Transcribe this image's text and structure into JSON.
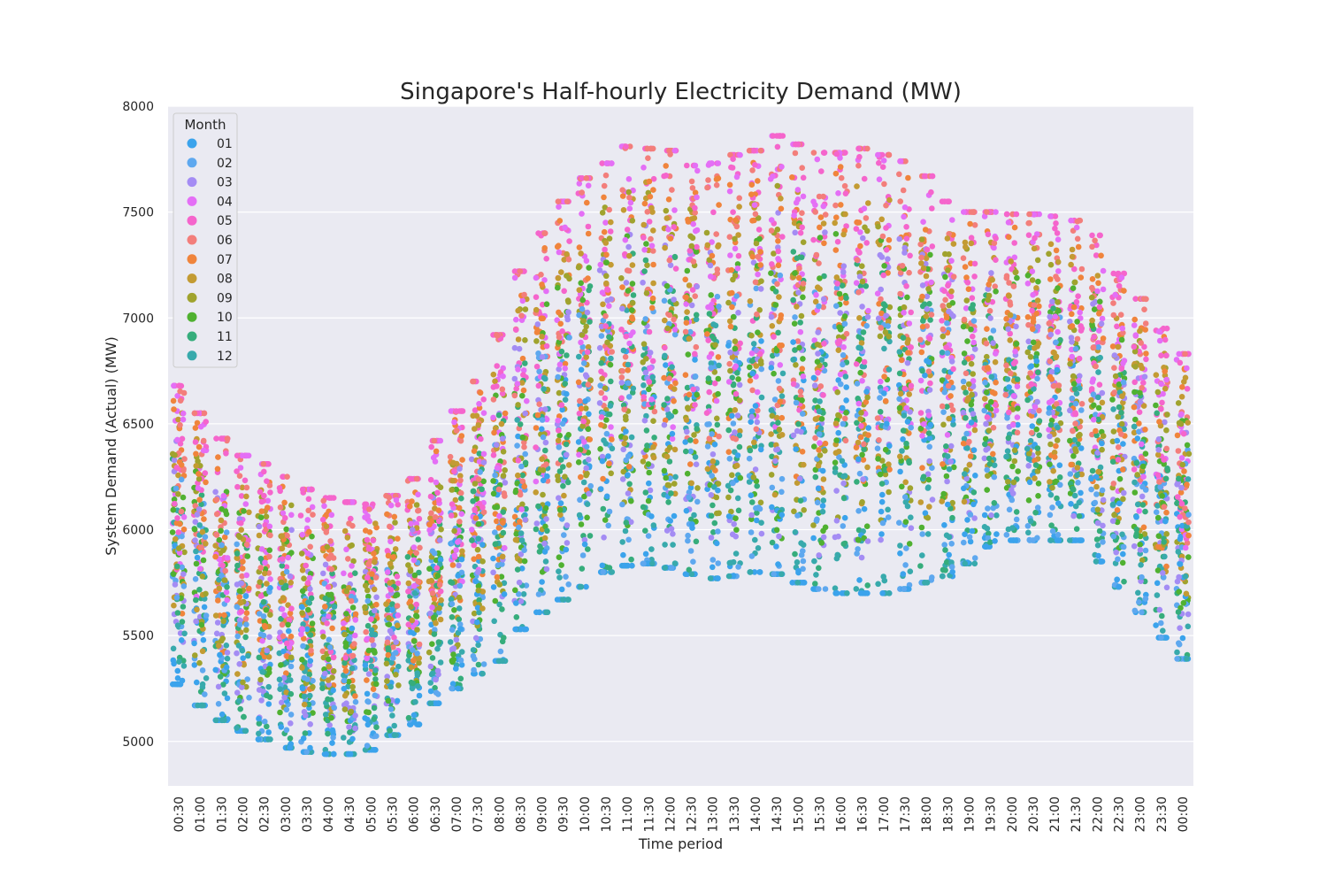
{
  "chart_data": {
    "type": "scatter",
    "title": "Singapore's Half-hourly Electricity Demand (MW)",
    "xlabel": "Time period",
    "ylabel": "System Demand (Actual) (MW)",
    "ylim": [
      4790,
      8000
    ],
    "yticks": [
      5000,
      5500,
      6000,
      6500,
      7000,
      7500,
      8000
    ],
    "grid": true,
    "categories": [
      "00:30",
      "01:00",
      "01:30",
      "02:00",
      "02:30",
      "03:00",
      "03:30",
      "04:00",
      "04:30",
      "05:00",
      "05:30",
      "06:00",
      "06:30",
      "07:00",
      "07:30",
      "08:00",
      "08:30",
      "09:00",
      "09:30",
      "10:00",
      "10:30",
      "11:00",
      "11:30",
      "12:00",
      "12:30",
      "13:00",
      "13:30",
      "14:00",
      "14:30",
      "15:00",
      "15:30",
      "16:00",
      "16:30",
      "17:00",
      "17:30",
      "18:00",
      "18:30",
      "19:00",
      "19:30",
      "20:00",
      "20:30",
      "21:00",
      "21:30",
      "22:00",
      "22:30",
      "23:00",
      "23:30",
      "00:00"
    ],
    "demand_min": [
      5270,
      5170,
      5100,
      5050,
      5010,
      4970,
      4950,
      4940,
      4940,
      4960,
      5030,
      5080,
      5180,
      5250,
      5320,
      5380,
      5530,
      5610,
      5670,
      5730,
      5800,
      5830,
      5840,
      5820,
      5790,
      5770,
      5780,
      5800,
      5790,
      5750,
      5720,
      5700,
      5700,
      5700,
      5720,
      5750,
      5780,
      5840,
      5920,
      5950,
      5950,
      5950,
      5950,
      5850,
      5730,
      5610,
      5490,
      5390
    ],
    "demand_max": [
      6680,
      6550,
      6430,
      6350,
      6310,
      6250,
      6190,
      6150,
      6130,
      6120,
      6160,
      6240,
      6420,
      6560,
      6700,
      6920,
      7220,
      7400,
      7550,
      7660,
      7730,
      7810,
      7800,
      7790,
      7720,
      7730,
      7770,
      7790,
      7860,
      7820,
      7780,
      7780,
      7800,
      7770,
      7740,
      7670,
      7550,
      7500,
      7500,
      7490,
      7490,
      7480,
      7460,
      7390,
      7210,
      7090,
      6950,
      6830
    ],
    "legend": {
      "title": "Month",
      "placement": "upper-left",
      "items": [
        {
          "label": "01",
          "color": "#3ba3ec"
        },
        {
          "label": "02",
          "color": "#5ea8ef"
        },
        {
          "label": "03",
          "color": "#a48cf4"
        },
        {
          "label": "04",
          "color": "#e46ff6"
        },
        {
          "label": "05",
          "color": "#f565cc"
        },
        {
          "label": "06",
          "color": "#f37e7b"
        },
        {
          "label": "07",
          "color": "#f0843c"
        },
        {
          "label": "08",
          "color": "#c39b33"
        },
        {
          "label": "09",
          "color": "#a0a32e"
        },
        {
          "label": "10",
          "color": "#50b131"
        },
        {
          "label": "11",
          "color": "#36ad7c"
        },
        {
          "label": "12",
          "color": "#38aaac"
        }
      ]
    },
    "background_color": "#eaeaf2",
    "grid_color": "#ffffff"
  }
}
